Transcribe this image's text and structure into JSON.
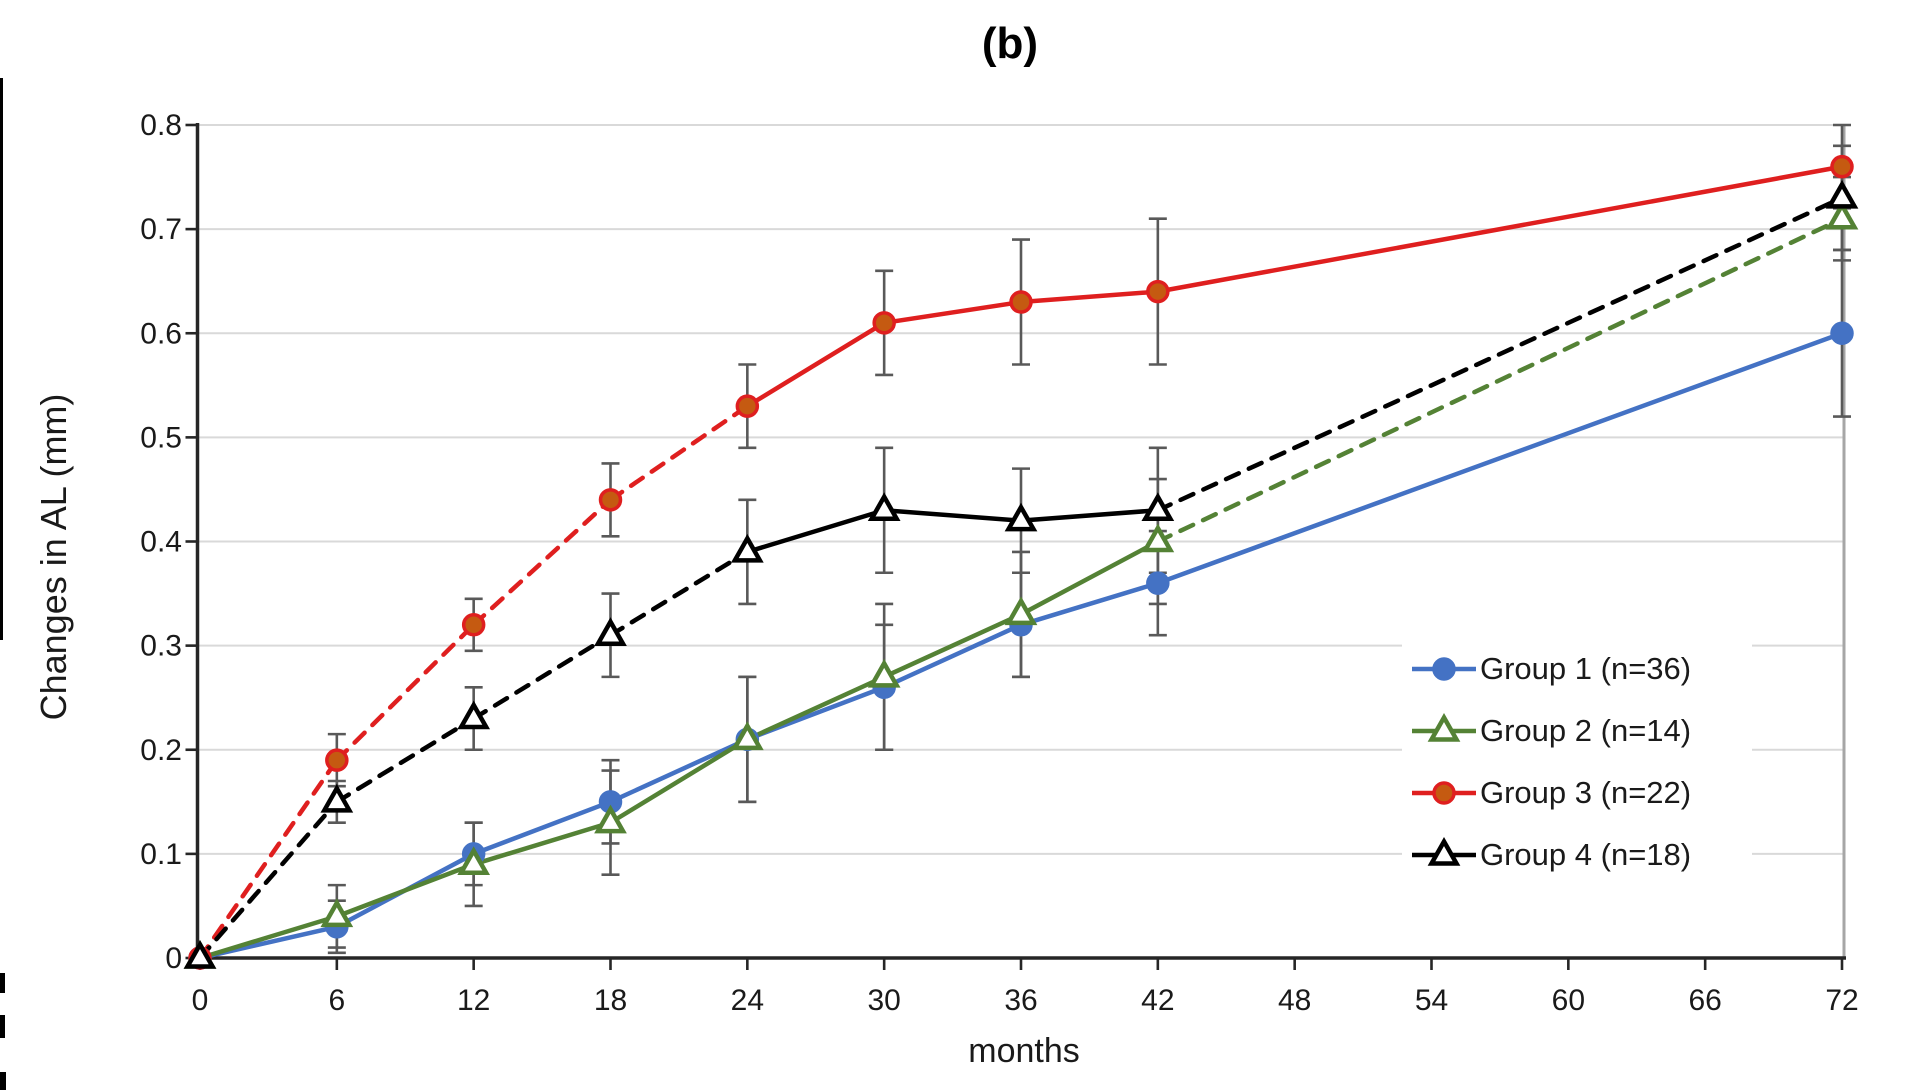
{
  "title": "(b)",
  "x_axis": {
    "title": "months",
    "tick_labels": [
      "0",
      "6",
      "12",
      "18",
      "24",
      "30",
      "36",
      "42",
      "48",
      "54",
      "60",
      "66",
      "72"
    ]
  },
  "y_axis": {
    "title": "Changes in AL (mm)",
    "tick_labels": [
      "0",
      "0.1",
      "0.2",
      "0.3",
      "0.4",
      "0.5",
      "0.6",
      "0.7",
      "0.8"
    ]
  },
  "legend": {
    "entries": [
      "Group 1 (n=36)",
      "Group 2 (n=14)",
      "Group 3 (n=22)",
      "Group 4 (n=18)"
    ]
  },
  "chart_data": {
    "type": "line",
    "title": "(b)",
    "xlabel": "months",
    "ylabel": "Changes in AL (mm)",
    "xlim": [
      0,
      72
    ],
    "ylim": [
      0,
      0.8
    ],
    "x_ticks": [
      0,
      6,
      12,
      18,
      24,
      30,
      36,
      42,
      48,
      54,
      60,
      66,
      72
    ],
    "y_ticks": [
      0,
      0.1,
      0.2,
      0.3,
      0.4,
      0.5,
      0.6,
      0.7,
      0.8
    ],
    "grid": "horizontal",
    "legend_position": "right-middle",
    "error_bar_color": "#595959",
    "grid_color": "#D9D9D9",
    "axis_color": "#262626",
    "right_border_color": "#A6A6A6",
    "x": [
      0,
      6,
      12,
      18,
      24,
      30,
      36,
      42,
      72
    ],
    "series": [
      {
        "name": "Group 1 (n=36)",
        "color": "#4472C4",
        "marker": "circle-filled",
        "marker_fill": "#4472C4",
        "values": [
          0,
          0.03,
          0.1,
          0.15,
          0.21,
          0.26,
          0.32,
          0.36,
          0.6
        ],
        "errors": [
          0,
          0.025,
          0.03,
          0.04,
          0.06,
          0.06,
          0.05,
          0.05,
          0.08
        ],
        "segment_styles": [
          "solid",
          "solid",
          "solid",
          "solid",
          "solid",
          "solid",
          "solid",
          "solid"
        ]
      },
      {
        "name": "Group 2 (n=14)",
        "color": "#548235",
        "marker": "triangle-open",
        "marker_fill": "#ffffff",
        "values": [
          0,
          0.04,
          0.09,
          0.13,
          0.21,
          0.27,
          0.33,
          0.4,
          0.71
        ],
        "errors": [
          0,
          0.03,
          0.04,
          0.05,
          0.06,
          0.07,
          0.06,
          0.06,
          0.04
        ],
        "segment_styles": [
          "solid",
          "solid",
          "solid",
          "solid",
          "solid",
          "solid",
          "solid",
          "dashed"
        ]
      },
      {
        "name": "Group 3 (n=22)",
        "color": "#DF1F1F",
        "marker": "circle-filled",
        "marker_fill": "#C55A11",
        "values": [
          0,
          0.19,
          0.32,
          0.44,
          0.53,
          0.61,
          0.63,
          0.64,
          0.76
        ],
        "errors": [
          0,
          0.025,
          0.025,
          0.035,
          0.04,
          0.05,
          0.06,
          0.07,
          0.04
        ],
        "segment_styles": [
          "dashed",
          "dashed",
          "dashed",
          "dashed",
          "solid",
          "solid",
          "solid",
          "solid"
        ]
      },
      {
        "name": "Group 4 (n=18)",
        "color": "#000000",
        "marker": "triangle-open",
        "marker_fill": "#ffffff",
        "values": [
          0,
          0.15,
          0.23,
          0.31,
          0.39,
          0.43,
          0.42,
          0.43,
          0.73
        ],
        "errors": [
          0,
          0.02,
          0.03,
          0.04,
          0.05,
          0.06,
          0.05,
          0.06,
          0.05
        ],
        "segment_styles": [
          "dashed",
          "dashed",
          "dashed",
          "dashed",
          "solid",
          "solid",
          "solid",
          "dashed"
        ]
      }
    ]
  }
}
